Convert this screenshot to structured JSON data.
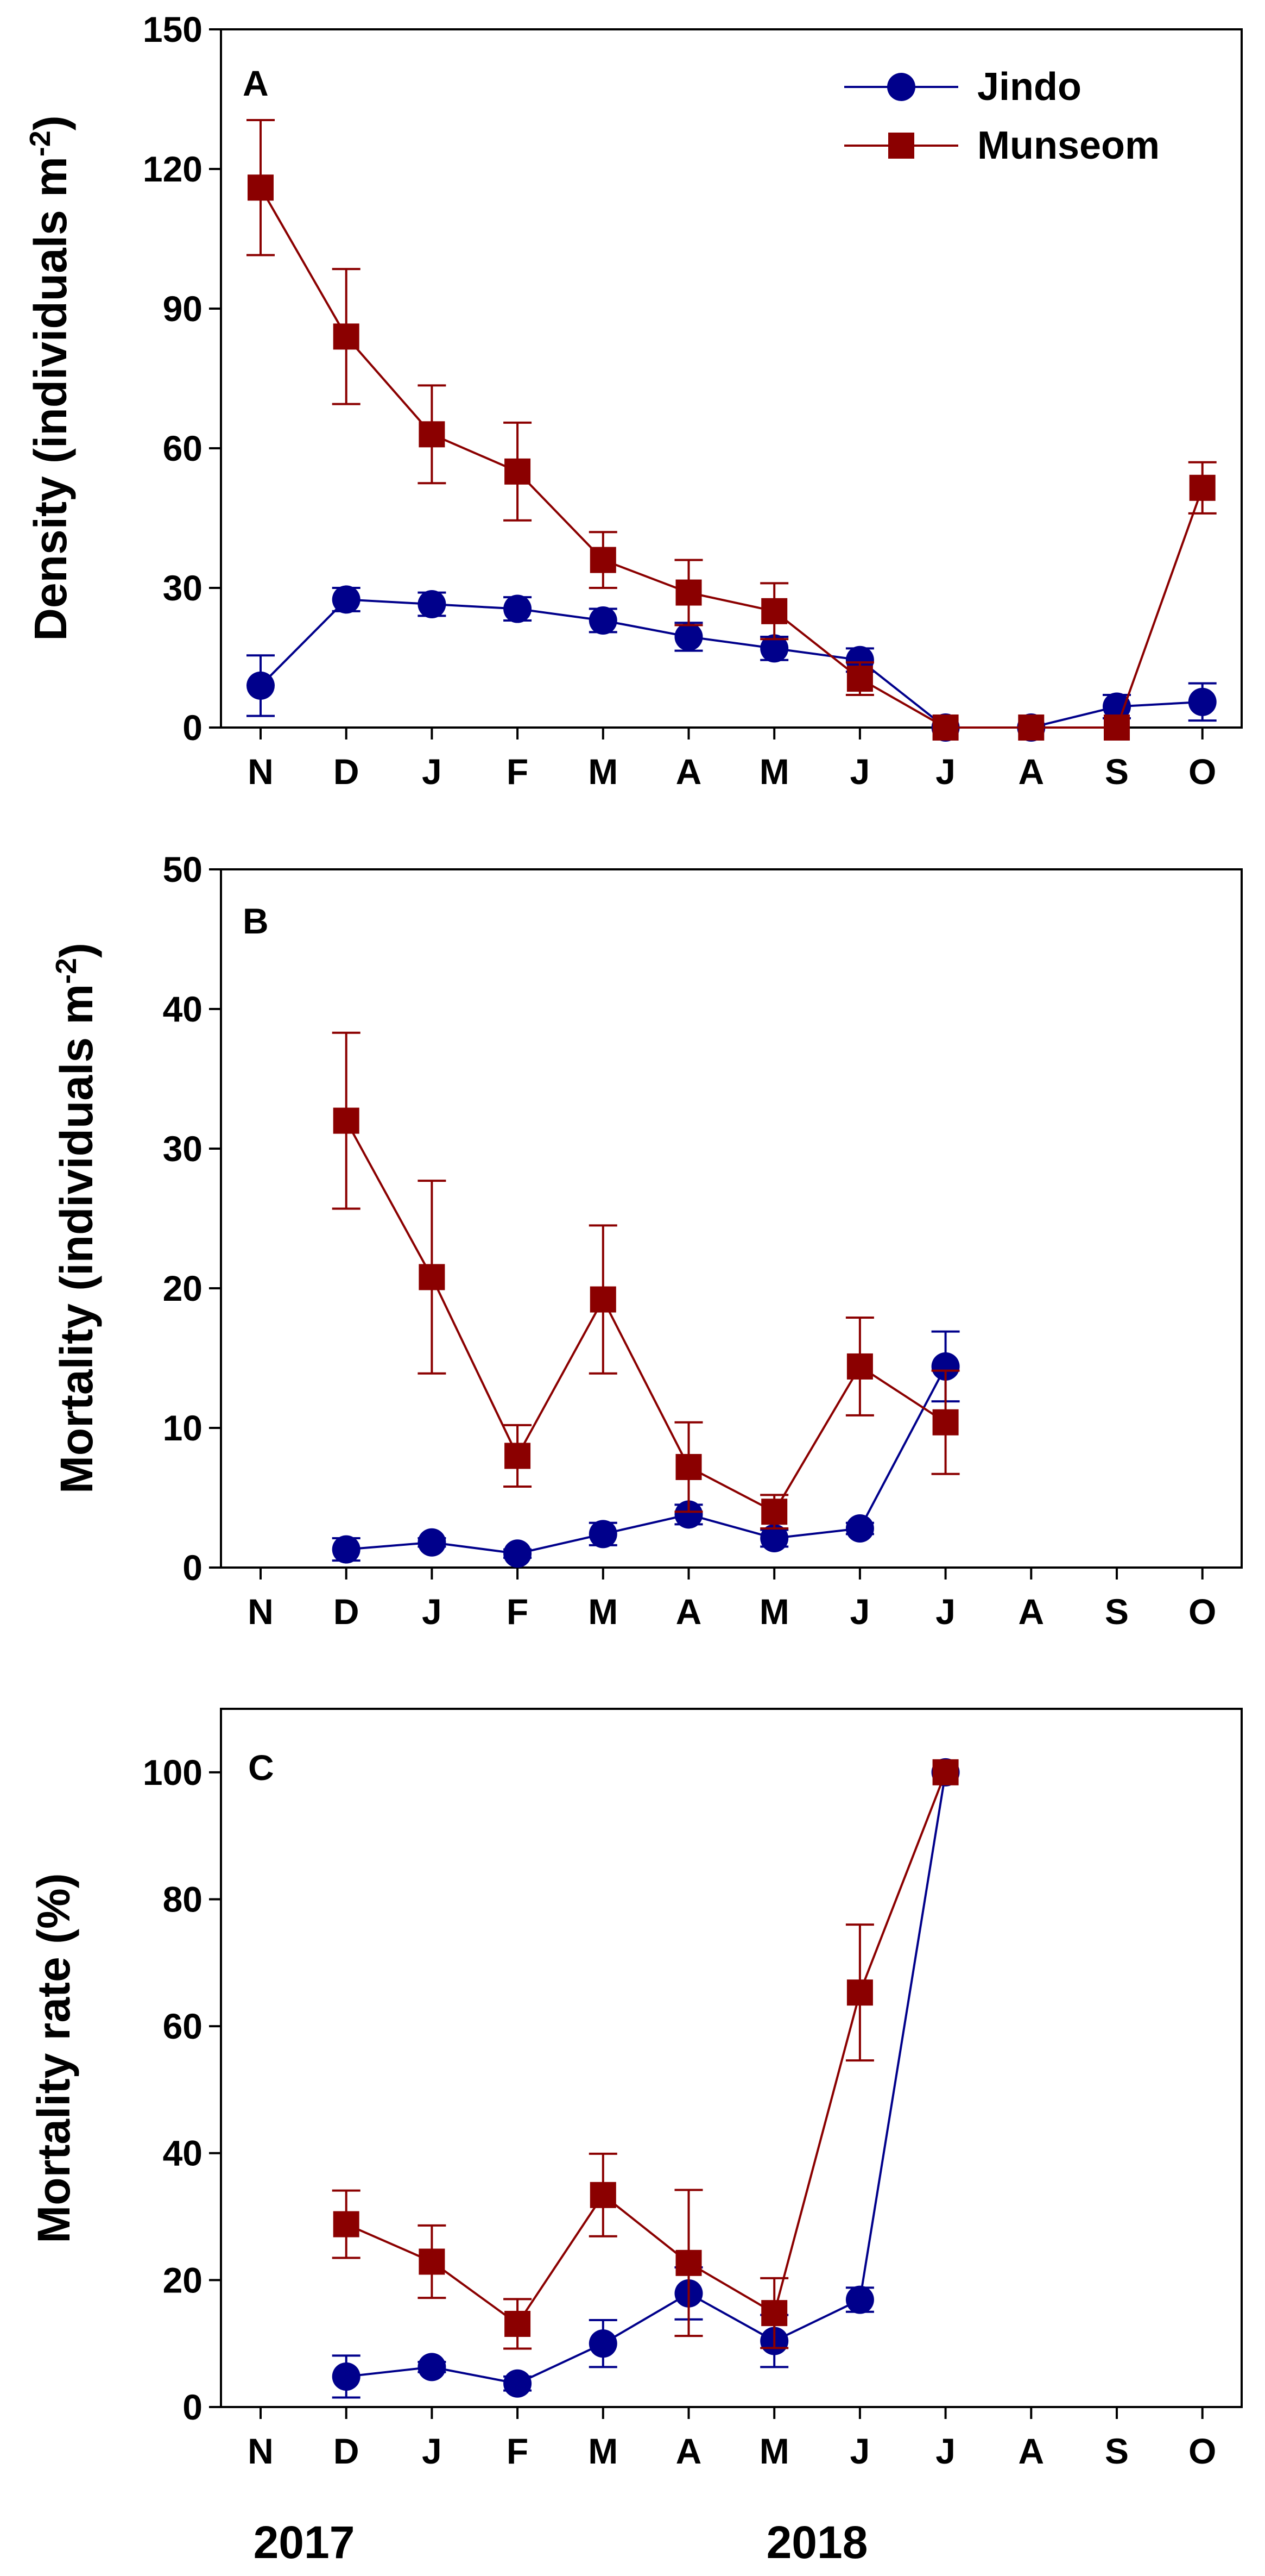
{
  "figure": {
    "x_categories": [
      "N",
      "D",
      "J",
      "F",
      "M",
      "A",
      "M",
      "J",
      "J",
      "A",
      "S",
      "O"
    ],
    "year_labels": [
      "2017",
      "2018"
    ],
    "series_styles": {
      "Jindo": {
        "color": "#00008B",
        "marker": "circle"
      },
      "Munseom": {
        "color": "#8B0000",
        "marker": "square"
      }
    }
  },
  "chart_data": [
    {
      "type": "line",
      "panel_label": "A",
      "ylabel": "Density (individuals m",
      "ylabel_sup": "-2",
      "ylabel_close": ")",
      "ylim": [
        0,
        150
      ],
      "yticks": [
        0,
        30,
        60,
        90,
        120,
        150
      ],
      "ytick_labels": [
        "0",
        "30",
        "60",
        "90",
        "120",
        "150"
      ],
      "legend": {
        "position": "top-right",
        "entries": [
          "Jindo",
          "Munseom"
        ]
      },
      "series": [
        {
          "name": "Jindo",
          "x": [
            0,
            1,
            2,
            3,
            4,
            5,
            6,
            7,
            8,
            9,
            10,
            11
          ],
          "y": [
            9,
            27.5,
            26.5,
            25.5,
            23,
            19.5,
            17,
            14.5,
            0,
            0,
            4.5,
            5.5
          ],
          "err": [
            6.5,
            2.5,
            2.5,
            2.5,
            2.5,
            3,
            2.5,
            2.5,
            0,
            0,
            2.5,
            4
          ]
        },
        {
          "name": "Munseom",
          "x": [
            0,
            1,
            2,
            3,
            4,
            5,
            6,
            7,
            8,
            9,
            10,
            11
          ],
          "y": [
            116,
            84,
            63,
            55,
            36,
            29,
            25,
            10.5,
            0,
            0,
            0,
            51.5
          ],
          "err": [
            14.5,
            14.5,
            10.5,
            10.5,
            6,
            7,
            6,
            3.5,
            0,
            0,
            0,
            5.5
          ]
        }
      ]
    },
    {
      "type": "line",
      "panel_label": "B",
      "ylabel": "Mortality (individuals m",
      "ylabel_sup": "-2",
      "ylabel_close": ")",
      "ylim": [
        0,
        50
      ],
      "yticks": [
        0,
        10,
        20,
        30,
        40,
        50
      ],
      "ytick_labels": [
        "0",
        "10",
        "20",
        "30",
        "40",
        "50"
      ],
      "series": [
        {
          "name": "Jindo",
          "x": [
            1,
            2,
            3,
            4,
            5,
            6,
            7,
            8
          ],
          "y": [
            1.3,
            1.8,
            1.0,
            2.4,
            3.8,
            2.1,
            2.8,
            14.4
          ],
          "err": [
            0.8,
            0.3,
            0.3,
            0.8,
            0.7,
            0.6,
            0.4,
            2.5
          ]
        },
        {
          "name": "Munseom",
          "x": [
            1,
            2,
            3,
            4,
            5,
            6,
            7,
            8
          ],
          "y": [
            32,
            20.8,
            8.0,
            19.2,
            7.2,
            4.0,
            14.4,
            10.4
          ],
          "err": [
            6.3,
            6.9,
            2.2,
            5.3,
            3.2,
            1.2,
            3.5,
            3.7
          ]
        }
      ]
    },
    {
      "type": "line",
      "panel_label": "C",
      "ylabel": "Mortality rate (%)",
      "ylabel_sup": "",
      "ylabel_close": "",
      "ylim": [
        0,
        110
      ],
      "yticks": [
        0,
        20,
        40,
        60,
        80,
        100
      ],
      "ytick_labels": [
        "0",
        "20",
        "40",
        "60",
        "80",
        "100"
      ],
      "series": [
        {
          "name": "Jindo",
          "x": [
            1,
            2,
            3,
            4,
            5,
            6,
            7,
            8
          ],
          "y": [
            4.8,
            6.3,
            3.7,
            10.0,
            17.9,
            10.4,
            16.9,
            100
          ],
          "err": [
            3.3,
            0.8,
            1.1,
            3.7,
            4.1,
            4.1,
            1.9,
            0
          ]
        },
        {
          "name": "Munseom",
          "x": [
            1,
            2,
            3,
            4,
            5,
            6,
            7,
            8
          ],
          "y": [
            28.8,
            22.9,
            13.1,
            33.4,
            22.7,
            14.8,
            65.3,
            100
          ],
          "err": [
            5.3,
            5.7,
            3.9,
            6.5,
            11.5,
            5.5,
            10.7,
            0
          ]
        }
      ]
    }
  ]
}
